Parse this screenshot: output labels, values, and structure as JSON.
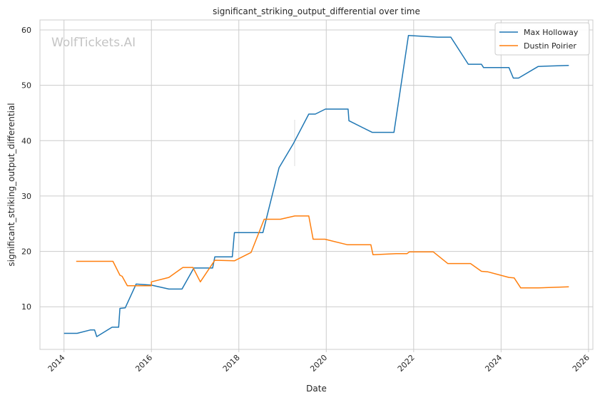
{
  "watermark": "WolfTickets.AI",
  "chart_data": {
    "type": "line",
    "title": "significant_striking_output_differential over time",
    "xlabel": "Date",
    "ylabel": "significant_striking_output_differential",
    "xlim": [
      2013.45,
      2026.1
    ],
    "ylim": [
      2.3,
      61.8
    ],
    "x_ticks": [
      2014,
      2016,
      2018,
      2020,
      2022,
      2024,
      2026
    ],
    "y_ticks": [
      10,
      20,
      30,
      40,
      50,
      60
    ],
    "grid": true,
    "legend_position": "top-right",
    "series": [
      {
        "name": "Max Holloway",
        "color": "#1f77b4",
        "points": [
          [
            2014.0,
            5.2
          ],
          [
            2014.3,
            5.2
          ],
          [
            2014.6,
            5.8
          ],
          [
            2014.7,
            5.8
          ],
          [
            2014.75,
            4.6
          ],
          [
            2015.1,
            6.3
          ],
          [
            2015.25,
            6.3
          ],
          [
            2015.28,
            9.7
          ],
          [
            2015.4,
            9.8
          ],
          [
            2015.65,
            14.1
          ],
          [
            2016.0,
            13.9
          ],
          [
            2016.4,
            13.2
          ],
          [
            2016.7,
            13.2
          ],
          [
            2016.97,
            17.0
          ],
          [
            2017.4,
            17.0
          ],
          [
            2017.45,
            19.0
          ],
          [
            2017.85,
            19.0
          ],
          [
            2017.9,
            23.4
          ],
          [
            2018.55,
            23.4
          ],
          [
            2018.92,
            35.1
          ],
          [
            2019.25,
            39.5
          ],
          [
            2019.6,
            44.8
          ],
          [
            2019.75,
            44.8
          ],
          [
            2019.98,
            45.7
          ],
          [
            2020.5,
            45.7
          ],
          [
            2020.52,
            43.6
          ],
          [
            2021.05,
            41.5
          ],
          [
            2021.55,
            41.5
          ],
          [
            2021.88,
            59.0
          ],
          [
            2022.55,
            58.7
          ],
          [
            2022.85,
            58.7
          ],
          [
            2023.25,
            53.8
          ],
          [
            2023.55,
            53.8
          ],
          [
            2023.6,
            53.2
          ],
          [
            2024.18,
            53.2
          ],
          [
            2024.28,
            51.3
          ],
          [
            2024.4,
            51.3
          ],
          [
            2024.85,
            53.4
          ],
          [
            2025.55,
            53.6
          ]
        ]
      },
      {
        "name": "Dustin Poirier",
        "color": "#ff7f0e",
        "points": [
          [
            2014.28,
            18.2
          ],
          [
            2015.12,
            18.2
          ],
          [
            2015.28,
            15.7
          ],
          [
            2015.33,
            15.5
          ],
          [
            2015.45,
            13.8
          ],
          [
            2016.0,
            13.8
          ],
          [
            2016.0,
            14.5
          ],
          [
            2016.4,
            15.3
          ],
          [
            2016.72,
            17.1
          ],
          [
            2016.95,
            17.1
          ],
          [
            2017.12,
            14.5
          ],
          [
            2017.45,
            18.4
          ],
          [
            2017.9,
            18.3
          ],
          [
            2018.28,
            19.8
          ],
          [
            2018.58,
            25.8
          ],
          [
            2018.95,
            25.8
          ],
          [
            2019.28,
            26.4
          ],
          [
            2019.6,
            26.4
          ],
          [
            2019.7,
            22.2
          ],
          [
            2019.97,
            22.2
          ],
          [
            2020.48,
            21.2
          ],
          [
            2021.02,
            21.2
          ],
          [
            2021.07,
            19.4
          ],
          [
            2021.6,
            19.6
          ],
          [
            2021.85,
            19.6
          ],
          [
            2021.9,
            19.9
          ],
          [
            2022.45,
            19.9
          ],
          [
            2022.78,
            17.8
          ],
          [
            2023.3,
            17.8
          ],
          [
            2023.55,
            16.4
          ],
          [
            2023.7,
            16.3
          ],
          [
            2024.18,
            15.3
          ],
          [
            2024.3,
            15.2
          ],
          [
            2024.45,
            13.4
          ],
          [
            2024.85,
            13.4
          ],
          [
            2025.55,
            13.6
          ]
        ]
      }
    ]
  }
}
